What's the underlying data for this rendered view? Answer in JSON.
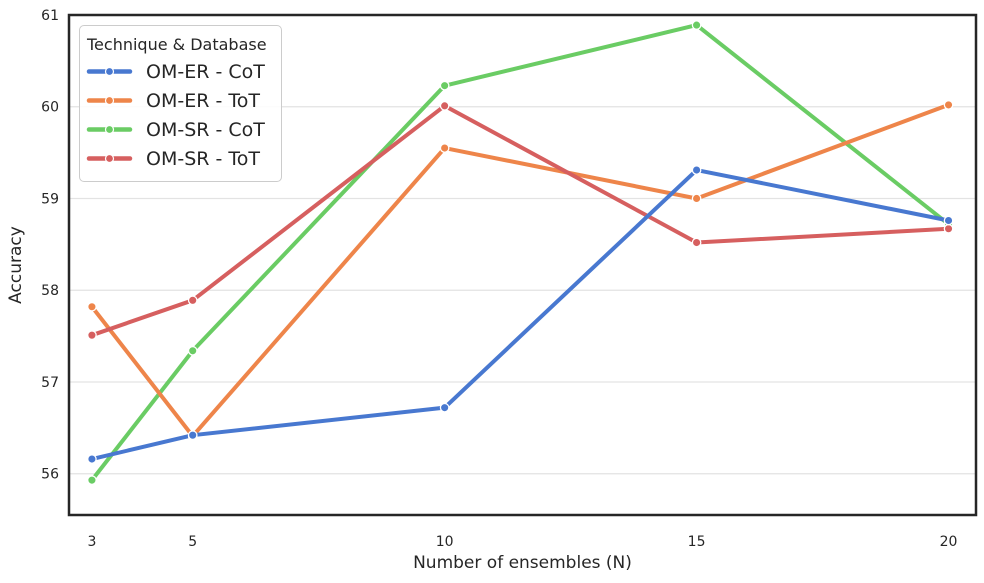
{
  "chart_data": {
    "type": "line",
    "title": "",
    "xlabel": "Number of ensembles (N)",
    "ylabel": "Accuracy",
    "x": [
      3,
      5,
      10,
      15,
      20
    ],
    "xticks": [
      "3",
      "5",
      "10",
      "15",
      "20"
    ],
    "yticks": [
      56,
      57,
      58,
      59,
      60,
      61
    ],
    "xlim": [
      2.545,
      20.545
    ],
    "ylim": [
      55.55,
      61.0
    ],
    "grid": "horizontal-only",
    "legend": {
      "title": "Technique & Database",
      "position": "upper-left"
    },
    "series": [
      {
        "name": "OM-ER - CoT",
        "color": "#4878d0",
        "values": [
          56.16,
          56.42,
          56.72,
          59.31,
          58.76
        ]
      },
      {
        "name": "OM-ER - ToT",
        "color": "#ee854a",
        "values": [
          57.82,
          56.41,
          59.55,
          59.0,
          60.02
        ]
      },
      {
        "name": "OM-SR - CoT",
        "color": "#6acc64",
        "values": [
          55.93,
          57.34,
          60.23,
          60.89,
          58.72
        ]
      },
      {
        "name": "OM-SR - ToT",
        "color": "#d65f5f",
        "values": [
          57.51,
          57.89,
          60.01,
          58.52,
          58.67
        ]
      }
    ],
    "colors": {
      "text": "#262626",
      "grid": "#e3e3e3",
      "spine": "#262626",
      "background": "#ffffff"
    }
  }
}
